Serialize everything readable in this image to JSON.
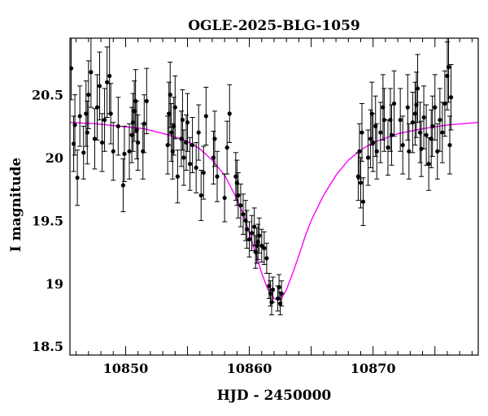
{
  "chart_data": {
    "type": "scatter",
    "title": "OGLE-2025-BLG-1059",
    "xlabel": "HJD - 2450000",
    "ylabel": "I magnitude",
    "xlim": [
      10845.5,
      10878.5
    ],
    "ylim": [
      20.95,
      18.43
    ],
    "y_inverted": true,
    "xticks_major": [
      10850,
      10860,
      10870
    ],
    "xtick_labels": [
      "10850",
      "10860",
      "10870"
    ],
    "yticks_major": [
      18.5,
      19,
      19.5,
      20,
      20.5
    ],
    "ytick_labels": [
      "18.5",
      "19",
      "19.5",
      "20",
      "20.5"
    ],
    "grid": false,
    "colors": {
      "data": "#000000",
      "model": "#ff00ff",
      "axes": "#000000"
    },
    "model": {
      "name": "model",
      "x": [
        10845.5,
        10847.5,
        10849.5,
        10851.5,
        10853.5,
        10855.0,
        10856.0,
        10857.0,
        10858.0,
        10859.0,
        10859.5,
        10860.0,
        10860.5,
        10861.0,
        10861.5,
        10862.0,
        10862.3,
        10862.6,
        10863.0,
        10863.5,
        10864.0,
        10864.5,
        10865.0,
        10866.0,
        10867.0,
        10868.0,
        10869.0,
        10870.0,
        10872.0,
        10874.0,
        10876.0,
        10878.5
      ],
      "y": [
        20.28,
        20.27,
        20.25,
        20.23,
        20.18,
        20.13,
        20.07,
        19.98,
        19.86,
        19.67,
        19.55,
        19.4,
        19.24,
        19.08,
        18.95,
        18.88,
        18.87,
        18.88,
        18.95,
        19.08,
        19.22,
        19.37,
        19.5,
        19.7,
        19.86,
        19.98,
        20.06,
        20.12,
        20.19,
        20.23,
        20.26,
        20.28
      ]
    },
    "series": [
      {
        "name": "data",
        "points": [
          [
            10845.6,
            20.71,
            0.25
          ],
          [
            10845.8,
            20.11,
            0.22
          ],
          [
            10845.9,
            20.26,
            0.24
          ],
          [
            10846.1,
            19.84,
            0.22
          ],
          [
            10846.3,
            20.33,
            0.24
          ],
          [
            10846.6,
            20.04,
            0.21
          ],
          [
            10846.8,
            20.35,
            0.26
          ],
          [
            10846.9,
            20.2,
            0.25
          ],
          [
            10847.0,
            20.5,
            0.27
          ],
          [
            10847.2,
            20.68,
            0.28
          ],
          [
            10847.5,
            20.15,
            0.24
          ],
          [
            10847.7,
            20.4,
            0.26
          ],
          [
            10847.9,
            20.57,
            0.27
          ],
          [
            10848.1,
            20.12,
            0.23
          ],
          [
            10848.3,
            20.3,
            0.25
          ],
          [
            10848.5,
            20.6,
            0.28
          ],
          [
            10848.7,
            20.65,
            0.3
          ],
          [
            10848.8,
            20.35,
            0.24
          ],
          [
            10849.0,
            20.05,
            0.23
          ],
          [
            10849.4,
            20.25,
            0.23
          ],
          [
            10849.8,
            19.78,
            0.21
          ],
          [
            10849.9,
            20.03,
            0.22
          ],
          [
            10850.3,
            20.05,
            0.22
          ],
          [
            10850.5,
            20.18,
            0.22
          ],
          [
            10850.6,
            20.28,
            0.23
          ],
          [
            10850.7,
            20.37,
            0.24
          ],
          [
            10850.8,
            20.45,
            0.25
          ],
          [
            10850.9,
            20.22,
            0.23
          ],
          [
            10851.0,
            20.12,
            0.22
          ],
          [
            10851.4,
            20.05,
            0.22
          ],
          [
            10851.5,
            20.27,
            0.23
          ],
          [
            10851.7,
            20.45,
            0.26
          ],
          [
            10853.4,
            20.1,
            0.23
          ],
          [
            10853.5,
            20.35,
            0.25
          ],
          [
            10853.6,
            20.5,
            0.26
          ],
          [
            10853.7,
            20.2,
            0.23
          ],
          [
            10853.8,
            20.05,
            0.22
          ],
          [
            10853.9,
            20.25,
            0.23
          ],
          [
            10854.0,
            20.4,
            0.25
          ],
          [
            10854.2,
            19.85,
            0.21
          ],
          [
            10854.5,
            20.15,
            0.22
          ],
          [
            10854.6,
            20.3,
            0.24
          ],
          [
            10854.7,
            20.0,
            0.22
          ],
          [
            10854.9,
            20.12,
            0.22
          ],
          [
            10855.0,
            20.28,
            0.23
          ],
          [
            10855.2,
            19.95,
            0.21
          ],
          [
            10855.4,
            20.1,
            0.22
          ],
          [
            10855.7,
            19.92,
            0.2
          ],
          [
            10855.9,
            20.2,
            0.22
          ],
          [
            10856.1,
            19.7,
            0.2
          ],
          [
            10856.3,
            19.88,
            0.21
          ],
          [
            10856.5,
            20.33,
            0.23
          ],
          [
            10857.1,
            20.0,
            0.21
          ],
          [
            10857.2,
            20.15,
            0.22
          ],
          [
            10857.4,
            19.85,
            0.2
          ],
          [
            10858.0,
            19.68,
            0.19
          ],
          [
            10858.2,
            20.08,
            0.21
          ],
          [
            10858.4,
            20.35,
            0.23
          ],
          [
            10858.9,
            19.85,
            0.19
          ],
          [
            10859.0,
            19.8,
            0.18
          ],
          [
            10859.1,
            19.7,
            0.18
          ],
          [
            10859.3,
            19.62,
            0.17
          ],
          [
            10859.5,
            19.55,
            0.16
          ],
          [
            10859.7,
            19.5,
            0.16
          ],
          [
            10859.8,
            19.43,
            0.15
          ],
          [
            10860.0,
            19.35,
            0.14
          ],
          [
            10860.2,
            19.4,
            0.14
          ],
          [
            10860.4,
            19.45,
            0.15
          ],
          [
            10860.5,
            19.25,
            0.13
          ],
          [
            10860.6,
            19.3,
            0.14
          ],
          [
            10860.7,
            19.33,
            0.14
          ],
          [
            10860.8,
            19.38,
            0.14
          ],
          [
            10861.0,
            19.3,
            0.13
          ],
          [
            10861.2,
            19.28,
            0.13
          ],
          [
            10861.4,
            19.2,
            0.12
          ],
          [
            10861.6,
            18.98,
            0.1
          ],
          [
            10861.7,
            18.92,
            0.1
          ],
          [
            10861.8,
            18.85,
            0.1
          ],
          [
            10861.9,
            18.95,
            0.1
          ],
          [
            10862.3,
            18.88,
            0.1
          ],
          [
            10862.4,
            18.97,
            0.1
          ],
          [
            10862.5,
            18.84,
            0.09
          ],
          [
            10862.6,
            18.92,
            0.1
          ],
          [
            10868.8,
            19.85,
            0.19
          ],
          [
            10868.9,
            20.05,
            0.22
          ],
          [
            10869.0,
            19.8,
            0.2
          ],
          [
            10869.1,
            20.2,
            0.23
          ],
          [
            10869.2,
            19.65,
            0.19
          ],
          [
            10869.6,
            20.0,
            0.22
          ],
          [
            10869.8,
            20.15,
            0.23
          ],
          [
            10869.9,
            20.35,
            0.25
          ],
          [
            10870.0,
            20.12,
            0.23
          ],
          [
            10870.2,
            20.25,
            0.24
          ],
          [
            10870.3,
            20.05,
            0.22
          ],
          [
            10870.6,
            20.2,
            0.24
          ],
          [
            10870.8,
            20.4,
            0.26
          ],
          [
            10870.9,
            20.3,
            0.25
          ],
          [
            10871.2,
            20.08,
            0.22
          ],
          [
            10871.4,
            20.3,
            0.25
          ],
          [
            10871.5,
            20.18,
            0.24
          ],
          [
            10871.7,
            20.43,
            0.26
          ],
          [
            10872.2,
            20.3,
            0.25
          ],
          [
            10872.4,
            20.1,
            0.23
          ],
          [
            10872.8,
            20.4,
            0.26
          ],
          [
            10872.9,
            20.05,
            0.22
          ],
          [
            10873.2,
            20.28,
            0.24
          ],
          [
            10873.4,
            20.35,
            0.25
          ],
          [
            10873.5,
            20.42,
            0.26
          ],
          [
            10873.6,
            20.55,
            0.27
          ],
          [
            10873.8,
            20.2,
            0.24
          ],
          [
            10873.9,
            20.07,
            0.22
          ],
          [
            10874.1,
            20.32,
            0.25
          ],
          [
            10874.3,
            20.18,
            0.24
          ],
          [
            10874.5,
            19.95,
            0.21
          ],
          [
            10874.7,
            20.15,
            0.23
          ],
          [
            10874.8,
            20.25,
            0.24
          ],
          [
            10875.0,
            20.4,
            0.26
          ],
          [
            10875.2,
            20.05,
            0.22
          ],
          [
            10875.4,
            20.3,
            0.25
          ],
          [
            10875.6,
            20.2,
            0.24
          ],
          [
            10875.8,
            20.43,
            0.26
          ],
          [
            10876.0,
            20.65,
            0.27
          ],
          [
            10876.1,
            20.72,
            0.28
          ],
          [
            10876.2,
            20.1,
            0.23
          ],
          [
            10876.3,
            20.48,
            0.26
          ]
        ]
      }
    ]
  }
}
